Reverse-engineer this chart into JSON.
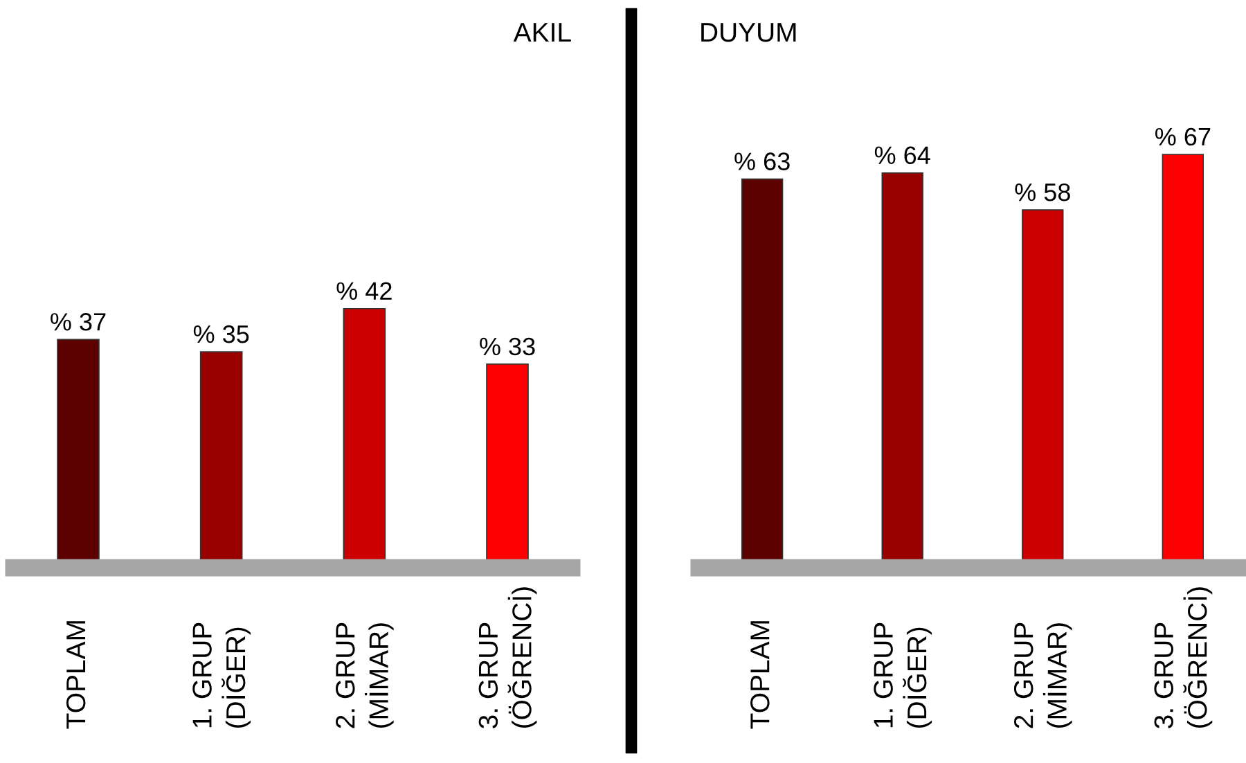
{
  "chart_data": [
    {
      "type": "bar",
      "title": "AKIL",
      "categories": [
        "TOPLAM",
        "1. GRUP\n(DİĞER)",
        "2. GRUP\n(MİMAR)",
        "3. GRUP\n(ÖĞRENCİ)"
      ],
      "values": [
        37,
        35,
        42,
        33
      ],
      "value_labels": [
        "% 37",
        "% 35",
        "% 42",
        "% 33"
      ],
      "colors": [
        "#5c0000",
        "#990000",
        "#cc0000",
        "#ff0000"
      ],
      "tick_labels": "x",
      "grid": false,
      "legend": false
    },
    {
      "type": "bar",
      "title": "DUYUM",
      "categories": [
        "TOPLAM",
        "1. GRUP\n(DİĞER)",
        "2. GRUP\n(MİMAR)",
        "3. GRUP\n(ÖĞRENCİ)"
      ],
      "values": [
        63,
        64,
        58,
        67
      ],
      "value_labels": [
        "% 63",
        "% 64",
        "% 58",
        "% 67"
      ],
      "colors": [
        "#5c0000",
        "#990000",
        "#cc0000",
        "#ff0000"
      ],
      "tick_labels": "x",
      "grid": false,
      "legend": false
    }
  ]
}
